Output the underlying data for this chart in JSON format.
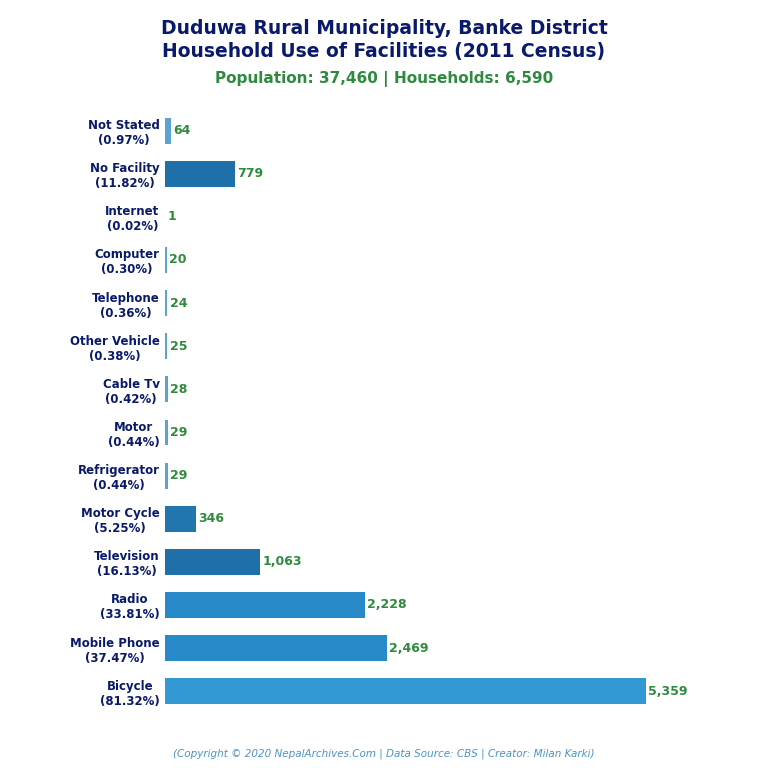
{
  "title_line1": "Duduwa Rural Municipality, Banke District",
  "title_line2": "Household Use of Facilities (2011 Census)",
  "subtitle": "Population: 37,460 | Households: 6,590",
  "footer": "(Copyright © 2020 NepalArchives.Com | Data Source: CBS | Creator: Milan Karki)",
  "categories": [
    "Not Stated\n(0.97%)",
    "No Facility\n(11.82%)",
    "Internet\n(0.02%)",
    "Computer\n(0.30%)",
    "Telephone\n(0.36%)",
    "Other Vehicle\n(0.38%)",
    "Cable Tv\n(0.42%)",
    "Motor\n(0.44%)",
    "Refrigerator\n(0.44%)",
    "Motor Cycle\n(5.25%)",
    "Television\n(16.13%)",
    "Radio\n(33.81%)",
    "Mobile Phone\n(37.47%)",
    "Bicycle\n(81.32%)"
  ],
  "values": [
    64,
    779,
    1,
    20,
    24,
    25,
    28,
    29,
    29,
    346,
    1063,
    2228,
    2469,
    5359
  ],
  "bar_colors": [
    "#5ba3d0",
    "#1f6fa8",
    "#5ba3d0",
    "#5ba3d0",
    "#5ba3d0",
    "#5ba3d0",
    "#5ba3d0",
    "#5ba3d0",
    "#5ba3d0",
    "#2176ae",
    "#1f6fa8",
    "#2889c8",
    "#2889c8",
    "#3399d4"
  ],
  "title_color": "#0a1a6b",
  "subtitle_color": "#2e8b3e",
  "value_color": "#2e8b3e",
  "footer_color": "#4d94c4",
  "background_color": "#ffffff",
  "figsize": [
    7.68,
    7.68
  ],
  "dpi": 100
}
